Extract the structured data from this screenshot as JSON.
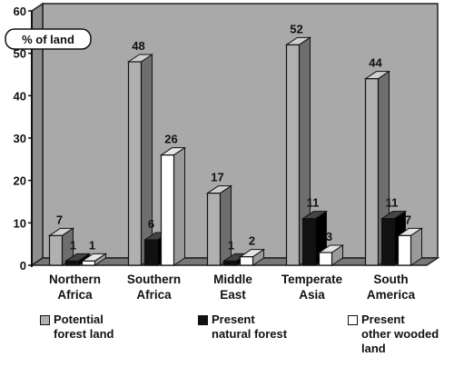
{
  "chart_data": {
    "type": "bar",
    "categories": [
      "Northern\nAfrica",
      "Southern\nAfrica",
      "Middle\nEast",
      "Temperate\nAsia",
      "South\nAmerica"
    ],
    "series": [
      {
        "name": "Potential\nforest land",
        "values": [
          7,
          48,
          17,
          52,
          44
        ],
        "color": "#b0b0b0"
      },
      {
        "name": "Present\nnatural forest",
        "values": [
          1,
          6,
          1,
          11,
          11
        ],
        "color": "#111111"
      },
      {
        "name": "Present\nother wooded\nland",
        "values": [
          1,
          26,
          2,
          3,
          7
        ],
        "color": "#ffffff"
      }
    ],
    "data_labels": [
      [
        "7",
        "48",
        "17",
        "52",
        "44"
      ],
      [
        "1",
        "6",
        "1",
        "11",
        "11"
      ],
      [
        "1",
        "26",
        "2",
        "3",
        "7"
      ]
    ],
    "ylabel": "% of land",
    "yticks": [
      "0",
      "10",
      "20",
      "30",
      "40",
      "50",
      "60"
    ],
    "ylim": [
      0,
      60
    ],
    "grid": false,
    "legend_placement": "bottom",
    "background_color": "#a9a9a9",
    "style": "3d"
  }
}
